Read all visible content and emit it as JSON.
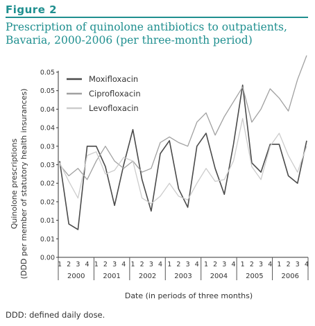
{
  "figure": {
    "label": "Figure 2",
    "title_line1": "Prescription of quinolone antibiotics to outpatients,",
    "title_line2": "Bavaria, 2000-2006 (per three-month period)",
    "footnote": "DDD: defined daily dose."
  },
  "colors": {
    "heading": "#1f8f8f",
    "moxifloxacin": "#4a4a4a",
    "ciprofloxacin": "#a0a0a0",
    "levofloxacin": "#cccccc"
  },
  "chart_data": {
    "type": "line",
    "xlabel": "Date (in periods of three months)",
    "ylabel_line1": "Quinolone prescriptions",
    "ylabel_line2": "(DDD per member of  statutory health insurances)",
    "ylim": [
      0,
      0.05
    ],
    "yticks": [
      "0.00",
      "0.01",
      "0.01",
      "0.02",
      "0.02",
      "0.03",
      "0.03",
      "0.04",
      "0.04",
      "0.05",
      "0.05"
    ],
    "quarters": [
      "1",
      "2",
      "3",
      "4",
      "1",
      "2",
      "3",
      "4",
      "1",
      "2",
      "3",
      "4",
      "1",
      "2",
      "3",
      "4",
      "1",
      "2",
      "3",
      "4",
      "1",
      "2",
      "3",
      "4",
      "1",
      "2",
      "3",
      "4"
    ],
    "years": [
      "2000",
      "2001",
      "2002",
      "2003",
      "2004",
      "2005",
      "2006"
    ],
    "grid": false,
    "legend_position": "top-left",
    "series": [
      {
        "name": "Moxifloxacin",
        "values": [
          0.026,
          0.009,
          0.0075,
          0.03,
          0.03,
          0.0245,
          0.014,
          0.025,
          0.0345,
          0.021,
          0.0125,
          0.028,
          0.0315,
          0.0185,
          0.0135,
          0.03,
          0.0335,
          0.024,
          0.017,
          0.0305,
          0.0465,
          0.0255,
          0.023,
          0.0305,
          0.0305,
          0.022,
          0.02,
          0.0315
        ]
      },
      {
        "name": "Ciprofloxacin",
        "values": [
          0.025,
          0.022,
          0.024,
          0.021,
          0.026,
          0.03,
          0.026,
          0.024,
          0.026,
          0.023,
          0.024,
          0.031,
          0.0325,
          0.031,
          0.03,
          0.0365,
          0.039,
          0.033,
          0.038,
          0.042,
          0.046,
          0.0365,
          0.04,
          0.0455,
          0.043,
          0.0395,
          0.048,
          0.0545
        ]
      },
      {
        "name": "Levofloxacin",
        "values": [
          0.0255,
          0.0205,
          0.016,
          0.0275,
          0.0285,
          0.0225,
          0.0235,
          0.027,
          0.026,
          0.016,
          0.0145,
          0.0165,
          0.02,
          0.0165,
          0.0155,
          0.02,
          0.024,
          0.0205,
          0.021,
          0.026,
          0.0375,
          0.0245,
          0.021,
          0.03,
          0.0335,
          0.0275,
          0.023,
          0.03
        ]
      }
    ]
  }
}
